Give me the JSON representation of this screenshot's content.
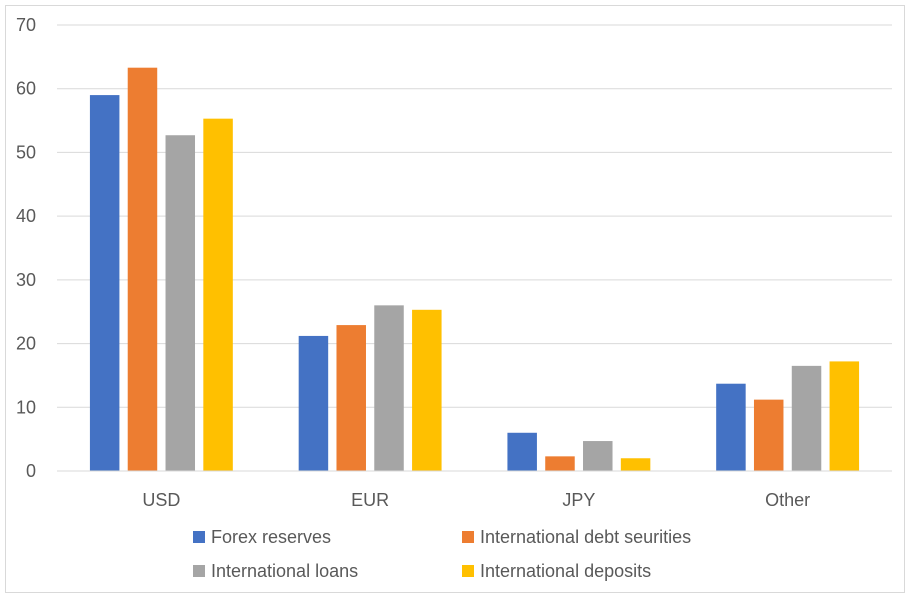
{
  "chart_data": {
    "type": "bar",
    "title": "",
    "xlabel": "",
    "ylabel": "",
    "categories": [
      "USD",
      "EUR",
      "JPY",
      "Other"
    ],
    "ylim": [
      0,
      70
    ],
    "yticks": [
      0,
      10,
      20,
      30,
      40,
      50,
      60,
      70
    ],
    "grid": true,
    "legend_position": "bottom",
    "series": [
      {
        "name": "Forex reserves",
        "color": "#4472C4",
        "values": [
          59.0,
          21.2,
          6.0,
          13.7
        ]
      },
      {
        "name": "International debt seurities",
        "color": "#ED7D31",
        "values": [
          63.3,
          22.9,
          2.3,
          11.2
        ]
      },
      {
        "name": "International loans",
        "color": "#A5A5A5",
        "values": [
          52.7,
          26.0,
          4.7,
          16.5
        ]
      },
      {
        "name": "International deposits",
        "color": "#FFC000",
        "values": [
          55.3,
          25.3,
          2.0,
          17.2
        ]
      }
    ]
  }
}
